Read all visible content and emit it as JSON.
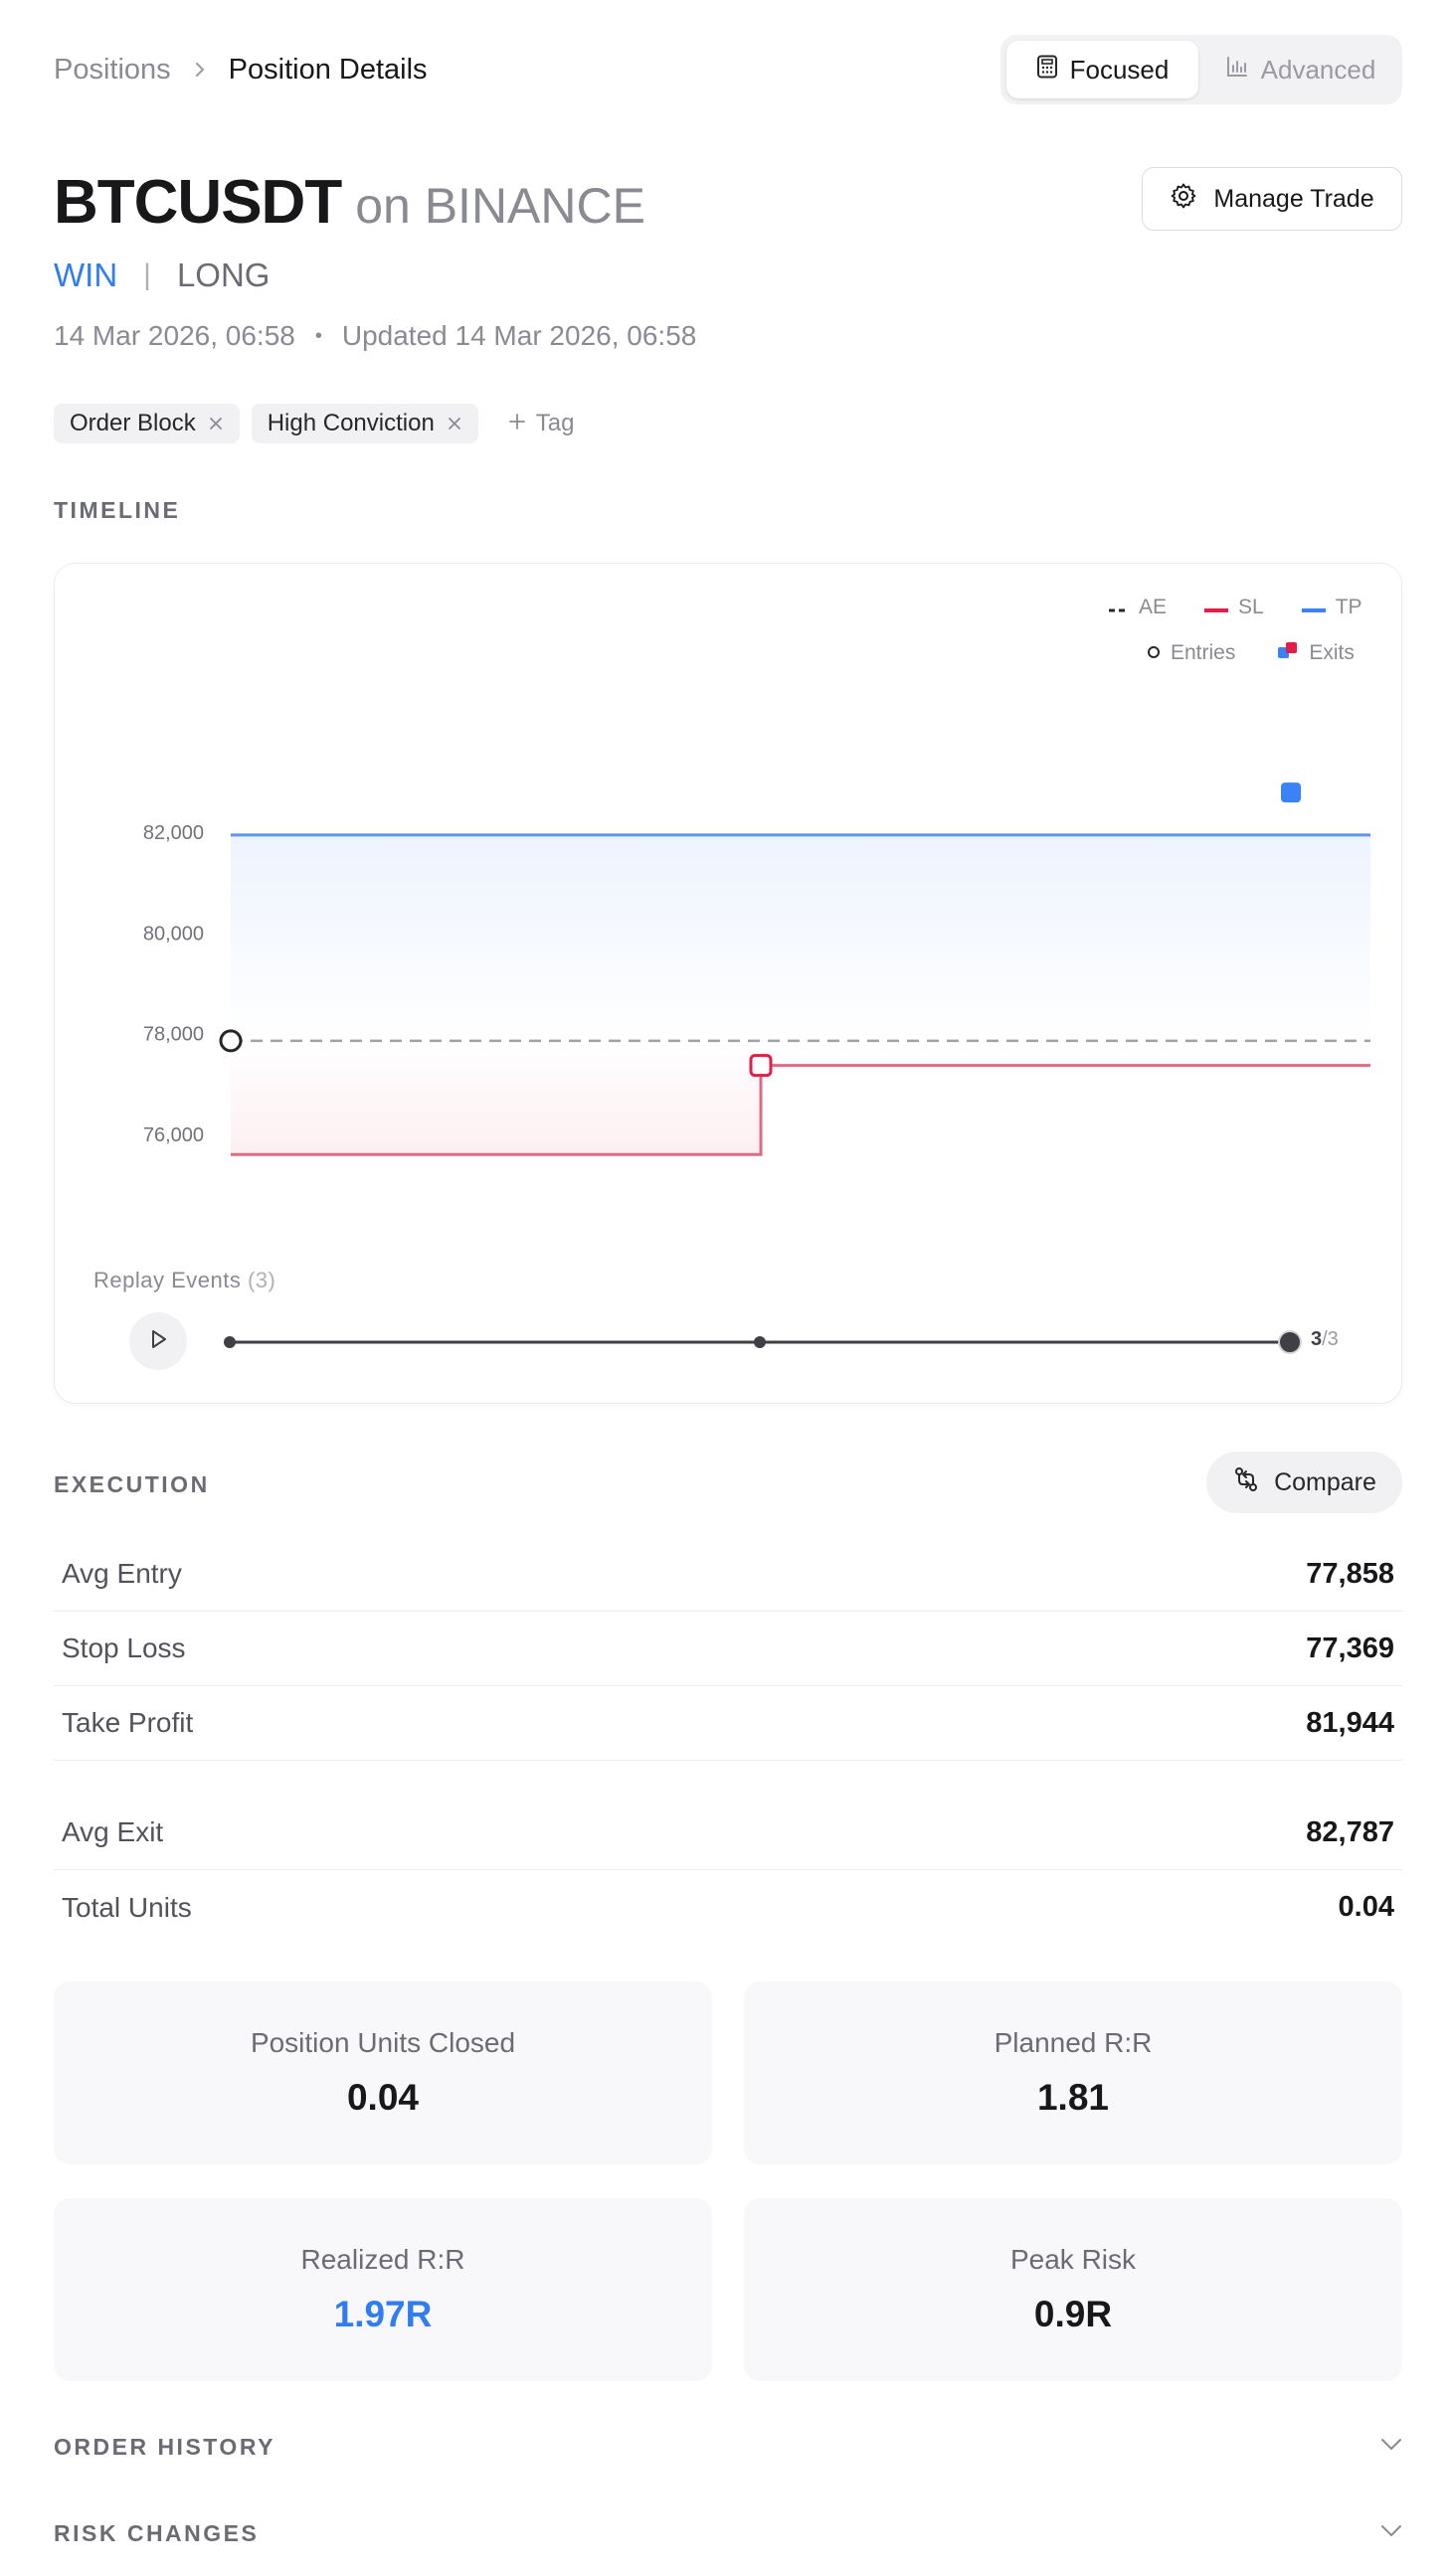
{
  "breadcrumb": {
    "parent": "Positions",
    "current": "Position Details"
  },
  "mode_toggle": {
    "focused": "Focused",
    "advanced": "Advanced"
  },
  "header": {
    "symbol": "BTCUSDT",
    "exchange": "on BINANCE",
    "outcome": "WIN",
    "separator": "|",
    "side": "LONG",
    "opened": "14 Mar 2026, 06:58",
    "updated": "Updated 14 Mar 2026, 06:58",
    "manage_label": "Manage Trade"
  },
  "tags": [
    "Order Block",
    "High Conviction"
  ],
  "add_tag_label": "Tag",
  "timeline": {
    "section_label": "TIMELINE",
    "legend": {
      "ae": "AE",
      "sl": "SL",
      "tp": "TP",
      "entries": "Entries",
      "exits": "Exits"
    },
    "replay_label": "Replay Events",
    "replay_count": "(3)",
    "replay_current": "3",
    "replay_total": "/3"
  },
  "chart_data": {
    "type": "line",
    "y_ticks": [
      "82,000",
      "80,000",
      "78,000",
      "76,000"
    ],
    "ylim": [
      74500,
      83200
    ],
    "events": [
      0,
      1,
      2
    ],
    "series": [
      {
        "name": "AE",
        "style": "dashed",
        "color": "#a1a1aa",
        "points": [
          [
            0,
            77858
          ],
          [
            2.15,
            77858
          ]
        ]
      },
      {
        "name": "SL",
        "style": "step",
        "color": "#e06a82",
        "points": [
          [
            0,
            75600
          ],
          [
            1,
            75600
          ],
          [
            1,
            77369
          ],
          [
            2.15,
            77369
          ]
        ]
      },
      {
        "name": "TP",
        "style": "solid",
        "color": "#5b95ec",
        "points": [
          [
            0,
            81944
          ],
          [
            2.15,
            81944
          ]
        ]
      }
    ],
    "entries": [
      [
        0,
        77858
      ]
    ],
    "exits": [
      [
        2,
        82787
      ]
    ],
    "sl_change_marker": [
      1,
      77369
    ],
    "colors": {
      "tp": "#3b82f6",
      "sl": "#e11d48",
      "ae": "#27272a",
      "exit": "#3b82f6"
    }
  },
  "execution": {
    "section_label": "EXECUTION",
    "compare_label": "Compare",
    "rows": [
      {
        "label": "Avg Entry",
        "value": "77,858"
      },
      {
        "label": "Stop Loss",
        "value": "77,369"
      },
      {
        "label": "Take Profit",
        "value": "81,944"
      }
    ],
    "rows2": [
      {
        "label": "Avg Exit",
        "value": "82,787"
      },
      {
        "label": "Total Units",
        "value": "0.04"
      }
    ]
  },
  "stats": [
    {
      "label": "Position Units Closed",
      "value": "0.04"
    },
    {
      "label": "Planned R:R",
      "value": "1.81"
    },
    {
      "label": "Realized R:R",
      "value": "1.97R"
    },
    {
      "label": "Peak Risk",
      "value": "0.9R"
    }
  ],
  "collapsibles": {
    "order_history": "ORDER HISTORY",
    "risk_changes": "RISK CHANGES"
  },
  "colors": {
    "accent": "#2f7df0",
    "muted": "#8a8a93"
  }
}
